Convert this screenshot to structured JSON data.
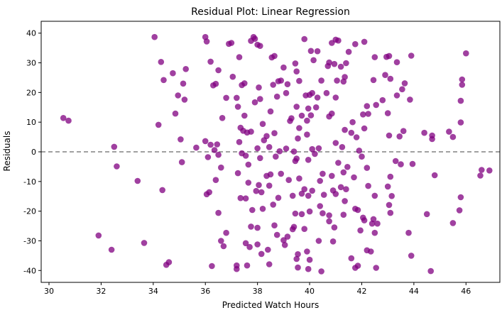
{
  "chart_data": {
    "type": "scatter",
    "title": "Residual Plot: Linear Regression",
    "xlabel": "Predicted Watch Hours",
    "ylabel": "Residuals",
    "xlim": [
      29.7,
      47.3
    ],
    "ylim": [
      -44,
      44
    ],
    "xticks": [
      30,
      32,
      34,
      36,
      38,
      40,
      42,
      44,
      46
    ],
    "yticks": [
      -40,
      -30,
      -20,
      -10,
      0,
      10,
      20,
      30,
      40
    ],
    "reference_line": {
      "y": 0,
      "style": "dashed",
      "color": "#808080"
    },
    "grid": false,
    "legend": "none",
    "point_color": "#800080",
    "point_alpha": 0.75,
    "series": [
      {
        "points": [
          [
            30.55,
            11.4
          ],
          [
            30.75,
            10.5
          ],
          [
            32.5,
            1.7
          ],
          [
            32.6,
            -4.9
          ],
          [
            31.9,
            -28.2
          ],
          [
            32.4,
            -33.0
          ],
          [
            33.4,
            -9.8
          ],
          [
            33.65,
            -30.7
          ],
          [
            34.05,
            38.7
          ],
          [
            34.2,
            9.1
          ],
          [
            34.3,
            30.3
          ],
          [
            34.4,
            24.2
          ],
          [
            34.35,
            -12.9
          ],
          [
            34.5,
            -38.1
          ],
          [
            34.6,
            -37.2
          ],
          [
            34.75,
            26.5
          ],
          [
            34.85,
            12.9
          ],
          [
            34.95,
            19.0
          ],
          [
            35.05,
            4.2
          ],
          [
            35.1,
            -3.5
          ],
          [
            35.15,
            23.0
          ],
          [
            35.2,
            17.6
          ],
          [
            35.25,
            27.9
          ],
          [
            35.65,
            1.4
          ],
          [
            36.0,
            38.7
          ],
          [
            36.05,
            37.2
          ],
          [
            36.2,
            30.4
          ],
          [
            36.3,
            22.4
          ],
          [
            36.4,
            22.9
          ],
          [
            36.5,
            27.5
          ],
          [
            36.0,
            3.6
          ],
          [
            36.1,
            -1.8
          ],
          [
            36.2,
            2.4
          ],
          [
            36.35,
            0.6
          ],
          [
            36.45,
            2.5
          ],
          [
            36.5,
            -1.0
          ],
          [
            36.65,
            11.4
          ],
          [
            36.6,
            -5.3
          ],
          [
            36.05,
            -14.3
          ],
          [
            36.15,
            -13.6
          ],
          [
            36.4,
            -9.5
          ],
          [
            36.5,
            -20.6
          ],
          [
            36.6,
            -30.0
          ],
          [
            36.7,
            -31.8
          ],
          [
            36.8,
            -27.3
          ],
          [
            36.25,
            -38.5
          ],
          [
            36.9,
            36.4
          ],
          [
            37.0,
            36.7
          ],
          [
            36.8,
            18.2
          ],
          [
            37.05,
            25.3
          ],
          [
            37.2,
            18.2
          ],
          [
            37.3,
            31.9
          ],
          [
            37.4,
            22.5
          ],
          [
            37.5,
            23.1
          ],
          [
            37.25,
            15.2
          ],
          [
            37.35,
            8.1
          ],
          [
            37.45,
            7.1
          ],
          [
            37.5,
            12.2
          ],
          [
            37.6,
            6.5
          ],
          [
            37.75,
            6.8
          ],
          [
            37.3,
            3.3
          ],
          [
            37.4,
            -0.5
          ],
          [
            37.55,
            -1.3
          ],
          [
            37.65,
            -4.3
          ],
          [
            37.25,
            -7.2
          ],
          [
            37.35,
            -15.6
          ],
          [
            37.55,
            -15.7
          ],
          [
            37.65,
            -10.4
          ],
          [
            37.8,
            -19.6
          ],
          [
            37.75,
            -25.2
          ],
          [
            37.55,
            -30.8
          ],
          [
            37.7,
            -32.1
          ],
          [
            37.2,
            -38.3
          ],
          [
            37.2,
            -39.5
          ],
          [
            37.6,
            -38.3
          ],
          [
            37.75,
            37.4
          ],
          [
            37.85,
            38.7
          ],
          [
            37.9,
            38.1
          ],
          [
            38.0,
            36.1
          ],
          [
            38.1,
            35.7
          ],
          [
            38.05,
            21.7
          ],
          [
            37.9,
            16.7
          ],
          [
            38.1,
            17.8
          ],
          [
            38.2,
            9.4
          ],
          [
            38.0,
            1.2
          ],
          [
            38.1,
            -2.1
          ],
          [
            38.25,
            3.9
          ],
          [
            38.35,
            5.3
          ],
          [
            38.45,
            1.6
          ],
          [
            38.05,
            -11.2
          ],
          [
            37.95,
            -13.2
          ],
          [
            38.15,
            -13.6
          ],
          [
            38.35,
            -8.1
          ],
          [
            38.45,
            -11.4
          ],
          [
            38.2,
            -19.2
          ],
          [
            38.0,
            -25.6
          ],
          [
            38.0,
            -31.2
          ],
          [
            38.15,
            -34.4
          ],
          [
            38.4,
            -33.0
          ],
          [
            38.45,
            -37.9
          ],
          [
            38.55,
            31.8
          ],
          [
            38.65,
            32.3
          ],
          [
            38.6,
            22.6
          ],
          [
            38.8,
            23.8
          ],
          [
            38.9,
            24.0
          ],
          [
            38.5,
            13.6
          ],
          [
            38.75,
            18.6
          ],
          [
            38.65,
            6.3
          ],
          [
            38.85,
            0.2
          ],
          [
            38.7,
            -1.6
          ],
          [
            38.5,
            -7.6
          ],
          [
            38.9,
            -7.4
          ],
          [
            38.6,
            -17.8
          ],
          [
            38.65,
            -24.8
          ],
          [
            38.8,
            -15.5
          ],
          [
            38.75,
            -28.0
          ],
          [
            39.0,
            28.4
          ],
          [
            39.1,
            19.8
          ],
          [
            39.15,
            22.8
          ],
          [
            39.25,
            10.4
          ],
          [
            39.3,
            11.3
          ],
          [
            39.1,
            1.1
          ],
          [
            39.4,
            0.1
          ],
          [
            39.2,
            -9.5
          ],
          [
            39.35,
            -14.8
          ],
          [
            39.15,
            -28.6
          ],
          [
            39.0,
            -29.8
          ],
          [
            39.4,
            -25.3
          ],
          [
            39.35,
            -26.1
          ],
          [
            39.05,
            -31.4
          ],
          [
            39.45,
            29.8
          ],
          [
            39.5,
            27.1
          ],
          [
            39.6,
            23.9
          ],
          [
            39.5,
            15.2
          ],
          [
            39.6,
            8.0
          ],
          [
            39.7,
            12.2
          ],
          [
            39.55,
            4.5
          ],
          [
            39.45,
            -3.1
          ],
          [
            39.5,
            -2.3
          ],
          [
            39.6,
            -9.0
          ],
          [
            39.7,
            -14.1
          ],
          [
            39.45,
            -20.8
          ],
          [
            39.55,
            -34.5
          ],
          [
            39.5,
            -36.1
          ],
          [
            39.55,
            -39.0
          ],
          [
            39.8,
            38.0
          ],
          [
            39.85,
            19.0
          ],
          [
            39.95,
            14.6
          ],
          [
            39.9,
            10.5
          ],
          [
            40.05,
            12.3
          ],
          [
            39.9,
            5.8
          ],
          [
            39.95,
            -2.7
          ],
          [
            40.1,
            0.9
          ],
          [
            40.2,
            -0.7
          ],
          [
            39.8,
            -12.6
          ],
          [
            39.95,
            -14.8
          ],
          [
            39.7,
            -21.0
          ],
          [
            40.0,
            -20.1
          ],
          [
            40.1,
            -13.1
          ],
          [
            39.8,
            -26.0
          ],
          [
            39.9,
            -33.6
          ],
          [
            40.0,
            -36.4
          ],
          [
            39.95,
            -39.5
          ],
          [
            40.05,
            34.0
          ],
          [
            40.15,
            30.9
          ],
          [
            40.3,
            33.9
          ],
          [
            40.0,
            19.2
          ],
          [
            40.1,
            19.8
          ],
          [
            40.3,
            18.3
          ],
          [
            40.25,
            15.0
          ],
          [
            40.35,
            1.2
          ],
          [
            40.5,
            -7.4
          ],
          [
            40.4,
            -9.8
          ],
          [
            40.55,
            -14.5
          ],
          [
            40.4,
            -18.3
          ],
          [
            40.5,
            -20.7
          ],
          [
            40.35,
            -30.0
          ],
          [
            40.45,
            -40.3
          ],
          [
            40.45,
            24.0
          ],
          [
            40.75,
            30.1
          ],
          [
            40.85,
            36.7
          ],
          [
            40.7,
            28.9
          ],
          [
            40.65,
            19.8
          ],
          [
            40.85,
            12.9
          ],
          [
            40.75,
            11.9
          ],
          [
            40.95,
            29.6
          ],
          [
            41.0,
            37.8
          ],
          [
            41.1,
            37.5
          ],
          [
            41.0,
            18.3
          ],
          [
            41.0,
            3.0
          ],
          [
            41.1,
            -3.7
          ],
          [
            40.85,
            -8.1
          ],
          [
            40.9,
            -13.0
          ],
          [
            41.0,
            -14.2
          ],
          [
            40.75,
            -21.4
          ],
          [
            40.75,
            -23.4
          ],
          [
            40.95,
            -25.5
          ],
          [
            40.9,
            -30.2
          ],
          [
            41.05,
            24.0
          ],
          [
            41.2,
            28.7
          ],
          [
            41.3,
            23.7
          ],
          [
            41.35,
            25.2
          ],
          [
            41.4,
            29.9
          ],
          [
            41.5,
            33.7
          ],
          [
            41.25,
            1.6
          ],
          [
            41.35,
            7.4
          ],
          [
            41.3,
            -6.9
          ],
          [
            41.2,
            -11.9
          ],
          [
            41.4,
            -12.6
          ],
          [
            41.35,
            -16.6
          ],
          [
            41.3,
            -21.2
          ],
          [
            41.45,
            -5.1
          ],
          [
            41.65,
            10.0
          ],
          [
            41.75,
            36.3
          ],
          [
            41.8,
            4.9
          ],
          [
            41.9,
            0.4
          ],
          [
            41.6,
            6.4
          ],
          [
            41.7,
            -8.6
          ],
          [
            41.75,
            -19.2
          ],
          [
            41.85,
            -19.6
          ],
          [
            41.6,
            -35.9
          ],
          [
            41.75,
            -39.1
          ],
          [
            41.85,
            -38.4
          ],
          [
            41.95,
            -26.5
          ],
          [
            42.1,
            37.1
          ],
          [
            42.05,
            12.6
          ],
          [
            42.1,
            7.9
          ],
          [
            42.2,
            15.4
          ],
          [
            42.25,
            12.8
          ],
          [
            42.0,
            -1.6
          ],
          [
            42.2,
            -5.4
          ],
          [
            42.25,
            -11.5
          ],
          [
            42.05,
            -22.2
          ],
          [
            42.1,
            -23.1
          ],
          [
            42.2,
            -33.2
          ],
          [
            42.35,
            -33.6
          ],
          [
            42.45,
            24.2
          ],
          [
            42.5,
            31.9
          ],
          [
            42.55,
            15.8
          ],
          [
            42.5,
            -14.8
          ],
          [
            42.45,
            -22.7
          ],
          [
            42.4,
            -24.2
          ],
          [
            42.5,
            -27.3
          ],
          [
            42.55,
            -39.1
          ],
          [
            42.6,
            -24.2
          ],
          [
            42.8,
            17.4
          ],
          [
            42.9,
            25.9
          ],
          [
            42.95,
            32.0
          ],
          [
            43.05,
            32.3
          ],
          [
            43.1,
            24.6
          ],
          [
            43.0,
            13.0
          ],
          [
            43.05,
            5.5
          ],
          [
            43.0,
            -11.7
          ],
          [
            43.05,
            -17.9
          ],
          [
            43.1,
            -8.4
          ],
          [
            43.1,
            -20.6
          ],
          [
            43.15,
            -14.9
          ],
          [
            43.3,
            -3.1
          ],
          [
            43.35,
            19.0
          ],
          [
            43.35,
            30.2
          ],
          [
            43.45,
            5.2
          ],
          [
            43.6,
            7.0
          ],
          [
            43.55,
            21.1
          ],
          [
            43.65,
            23.1
          ],
          [
            43.5,
            -4.2
          ],
          [
            43.8,
            -27.3
          ],
          [
            43.85,
            17.6
          ],
          [
            43.9,
            32.4
          ],
          [
            43.95,
            -4.1
          ],
          [
            43.9,
            -35.0
          ],
          [
            44.4,
            6.4
          ],
          [
            44.5,
            -21.0
          ],
          [
            44.65,
            -40.2
          ],
          [
            44.7,
            5.5
          ],
          [
            44.7,
            4.3
          ],
          [
            44.8,
            -7.9
          ],
          [
            45.35,
            6.8
          ],
          [
            45.5,
            5.0
          ],
          [
            45.5,
            -24.0
          ],
          [
            45.85,
            24.4
          ],
          [
            45.85,
            22.6
          ],
          [
            45.8,
            17.2
          ],
          [
            45.8,
            9.9
          ],
          [
            45.8,
            -15.3
          ],
          [
            45.75,
            -19.7
          ],
          [
            46.0,
            33.2
          ],
          [
            46.55,
            -8.0
          ],
          [
            46.6,
            -6.1
          ],
          [
            46.9,
            -6.3
          ]
        ]
      }
    ]
  }
}
